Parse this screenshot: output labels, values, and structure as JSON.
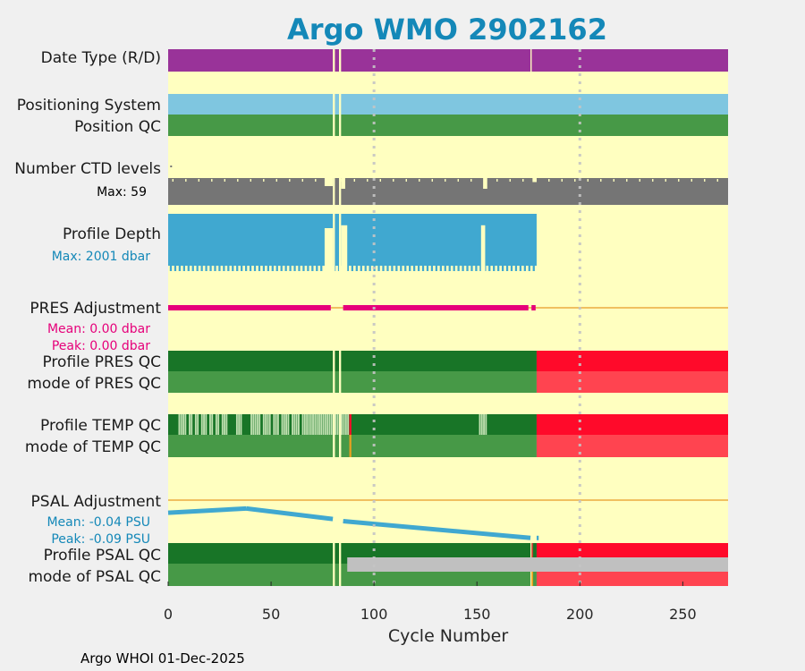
{
  "chart_data": {
    "type": "timeline",
    "title": "Argo WMO 2902162",
    "xlabel": "Cycle Number",
    "xlim": [
      0,
      272
    ],
    "xticks": [
      "0",
      "50",
      "100",
      "150",
      "200",
      "250"
    ],
    "xtick_values": [
      0,
      50,
      100,
      150,
      200,
      250
    ],
    "grid_x": [
      100,
      200
    ],
    "footer": "Argo WHOI 01-Dec-2025",
    "colors": {
      "background": "#ffffc0",
      "date_type": "#993399",
      "positioning": "#7fc6e0",
      "qc_good": "#479947",
      "qc_good_dark": "#187527",
      "qc_probably_good": "#c0e0b0",
      "qc_bad": "#ff0a2a",
      "qc_bad_light": "#ff4450",
      "qc_changed": "#e8a020",
      "missing": "#c0c0c0",
      "ctd_levels": "#757575",
      "profile_depth": "#40a8d0",
      "pres_adj": "#e6007a",
      "psal_adj": "#40a8d0",
      "zero_line": "#f0c060",
      "title": "#1488b8"
    },
    "rows": {
      "date_type": {
        "label": "Date Type (R/D)"
      },
      "positioning_system": {
        "label": "Positioning System"
      },
      "position_qc": {
        "label": "Position QC"
      },
      "ctd_levels": {
        "label": "Number CTD levels",
        "max_label": "Max: 59",
        "max": 59
      },
      "profile_depth": {
        "label": "Profile Depth",
        "max_label": "Max: 2001 dbar",
        "max": 2001
      },
      "pres_adjustment": {
        "label": "PRES Adjustment",
        "mean_label": "Mean: 0.00 dbar",
        "peak_label": "Peak: 0.00 dbar"
      },
      "profile_pres_qc": {
        "label": "Profile PRES QC"
      },
      "mode_pres_qc": {
        "label": "mode of PRES QC"
      },
      "profile_temp_qc": {
        "label": "Profile TEMP QC"
      },
      "mode_temp_qc": {
        "label": "mode of TEMP QC"
      },
      "psal_adjustment": {
        "label": "PSAL Adjustment",
        "mean_label": "Mean: -0.04 PSU",
        "peak_label": "Peak: -0.09 PSU",
        "points": [
          [
            0,
            -0.03
          ],
          [
            38,
            -0.02
          ],
          [
            80,
            -0.045
          ],
          [
            85,
            -0.05
          ],
          [
            176,
            -0.09
          ],
          [
            179,
            -0.09
          ]
        ]
      },
      "profile_psal_qc": {
        "label": "Profile PSAL QC"
      },
      "mode_psal_qc": {
        "label": "mode of PSAL QC"
      }
    },
    "segments": {
      "date_type": [
        [
          0,
          80
        ],
        [
          81,
          83
        ],
        [
          84,
          176
        ],
        [
          176.6,
          272
        ]
      ],
      "positioning": [
        [
          0,
          80
        ],
        [
          81,
          83
        ],
        [
          84,
          272
        ]
      ],
      "pres_qc_good": [
        [
          0,
          80
        ],
        [
          81,
          83
        ],
        [
          84,
          179
        ]
      ],
      "pres_qc_bad": [
        [
          179,
          272
        ]
      ],
      "psal_qc_good": [
        [
          0,
          80
        ],
        [
          81,
          83
        ],
        [
          84,
          176
        ],
        [
          177,
          179
        ]
      ],
      "psal_qc_bad": [
        [
          179,
          272
        ]
      ],
      "psal_qc_changed_cycle": 176.5,
      "psal_qc_bad_cycle": 176.5,
      "psal_mode_missing": [
        [
          87,
          272
        ]
      ],
      "temp_qc_bad": [
        [
          179,
          272
        ]
      ],
      "temp_qc_flag_cycle": 88,
      "temp_qc_changed_cycle": 88,
      "ctd_gaps": [
        [
          80,
          81
        ],
        [
          83,
          84
        ]
      ],
      "ctd_dips": [
        [
          76,
          80,
          0.3
        ],
        [
          84,
          86,
          0.4
        ],
        [
          153,
          155,
          0.4
        ],
        [
          177,
          179,
          0.15
        ]
      ],
      "depth_end": 179,
      "depth_partial": [
        [
          76,
          80,
          0.25
        ],
        [
          84,
          87,
          0.2
        ],
        [
          152,
          154,
          0.2
        ]
      ],
      "pres_adj_segments": [
        [
          0,
          79
        ],
        [
          85,
          175
        ],
        [
          176.5,
          178.5
        ]
      ],
      "temp_light_cycles": [
        5,
        6,
        7,
        8,
        10,
        11,
        13,
        14,
        16,
        17,
        18,
        20,
        21,
        23,
        24,
        26,
        27,
        28,
        33,
        34,
        35,
        40,
        41,
        42,
        43,
        44,
        46,
        47,
        48,
        49,
        51,
        52,
        53,
        55,
        56,
        57,
        58,
        60,
        61,
        62,
        63,
        65,
        66,
        67,
        68,
        69,
        70,
        71,
        72,
        73,
        74,
        75,
        76,
        77,
        78,
        79,
        80,
        81,
        82,
        83,
        84,
        85,
        86,
        87,
        151,
        152,
        153,
        154
      ]
    }
  }
}
